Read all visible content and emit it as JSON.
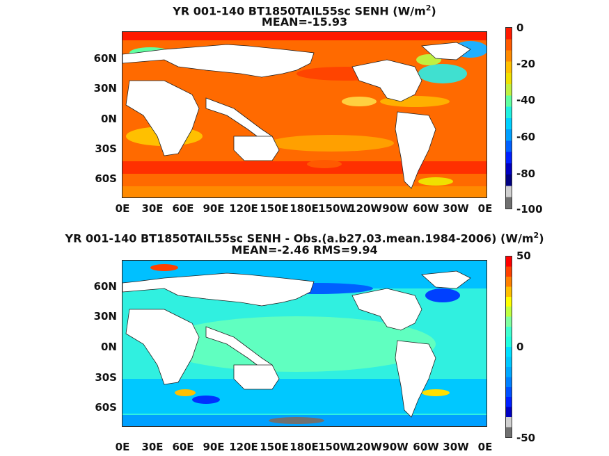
{
  "panels": [
    {
      "title_line1": "YR 001-140 BT1850TAIL55sc  SENH (W/m",
      "title_sup": "2",
      "title_close": ")",
      "title_line2": "MEAN=-15.93",
      "colorbar_ticks": [
        "0",
        "-20",
        "-40",
        "-60",
        "-80",
        "-100"
      ],
      "colorbar_colors": [
        "#ff1a00",
        "#ff5a00",
        "#ff8a00",
        "#ffc000",
        "#f0e000",
        "#c0f040",
        "#60ffa0",
        "#20f0e0",
        "#00d0ff",
        "#00a0ff",
        "#0060ff",
        "#0020ff",
        "#0000c0",
        "#000080",
        "#d0d0d0",
        "#707070"
      ],
      "ocean_fill": "#ff6a00"
    },
    {
      "title_line1": "YR 001-140 BT1850TAIL55sc SENH - Obs.(a.b27.03.mean.1984-2006) (W/m",
      "title_sup": "2",
      "title_close": ")",
      "title_line2": "MEAN=-2.46 RMS=9.94",
      "colorbar_ticks": [
        "50",
        "0",
        "-50"
      ],
      "colorbar_colors": [
        "#ff0000",
        "#ff4000",
        "#ff8000",
        "#ffc000",
        "#ffff00",
        "#c0ff40",
        "#80ffa0",
        "#40ffd0",
        "#20ffe0",
        "#00e0ff",
        "#00c8ff",
        "#00a8ff",
        "#0080ff",
        "#0050ff",
        "#0020ff",
        "#0000c0",
        "#d0d0d0",
        "#707070"
      ],
      "ocean_fill": "#30f0e0"
    }
  ],
  "lat_labels": [
    "60N",
    "30N",
    "0N",
    "30S",
    "60S"
  ],
  "lon_labels": [
    "0E",
    "30E",
    "60E",
    "90E",
    "120E",
    "150E",
    "180E",
    "150W",
    "120W",
    "90W",
    "60W",
    "30W",
    "0E"
  ]
}
